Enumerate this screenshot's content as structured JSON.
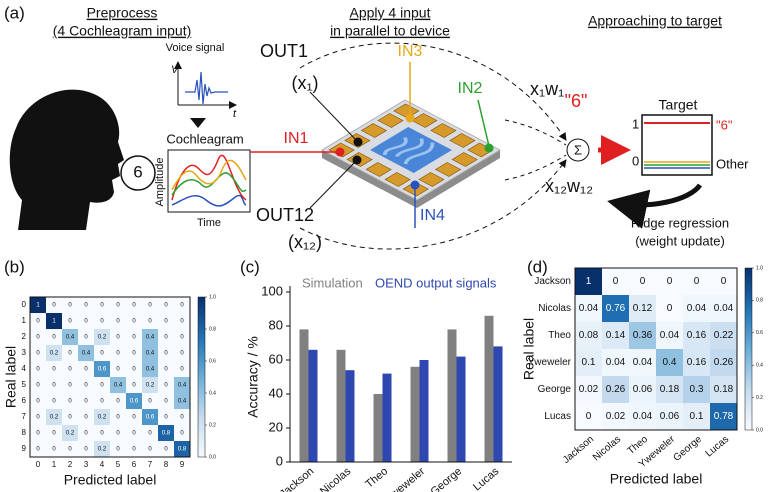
{
  "diagram": {
    "label": "(a)",
    "preprocess_title": "Preprocess",
    "preprocess_subtitle": "(4 Cochleagram input)",
    "apply_title": "Apply 4 input",
    "apply_subtitle": "in parallel to device",
    "target_title": "Approaching to target",
    "speech": "6",
    "voice_signal": "Voice signal",
    "voice_y": "V",
    "voice_x": "t",
    "cochleagram": "Cochleagram",
    "amplitude": "Amplitude",
    "time": "Time",
    "out1": "OUT1",
    "x1": "(x₁)",
    "out12": "OUT12",
    "x12": "(x₁₂)",
    "in1": "IN1",
    "in2": "IN2",
    "in3": "IN3",
    "in4": "IN4",
    "x1w1": "x₁w₁",
    "x12w12": "x₁₂w₁₂",
    "sum_label": "\"6\"",
    "sigma": "Σ",
    "target": "Target",
    "one": "1",
    "zero": "0",
    "target_six": "\"6\"",
    "other": "Other",
    "ridge": "Ridge regression",
    "weight_update": "(weight update)"
  },
  "chart_data": [
    {
      "type": "heatmap",
      "label": "(b)",
      "x_label": "Predicted label",
      "y_label": "Real label",
      "x": [
        "0",
        "1",
        "2",
        "3",
        "4",
        "5",
        "6",
        "7",
        "8",
        "9"
      ],
      "y": [
        "0",
        "1",
        "2",
        "3",
        "4",
        "5",
        "6",
        "7",
        "8",
        "9"
      ],
      "values": [
        [
          1,
          0,
          0,
          0,
          0,
          0,
          0,
          0,
          0,
          0
        ],
        [
          0,
          1,
          0,
          0,
          0,
          0,
          0,
          0,
          0,
          0
        ],
        [
          0,
          0,
          0.4,
          0,
          0.2,
          0,
          0,
          0.4,
          0,
          0
        ],
        [
          0,
          0.2,
          0,
          0.4,
          0,
          0,
          0,
          0.4,
          0,
          0
        ],
        [
          0,
          0,
          0,
          0,
          0.6,
          0,
          0,
          0.4,
          0,
          0
        ],
        [
          0,
          0,
          0,
          0,
          0,
          0.4,
          0,
          0.2,
          0,
          0.4
        ],
        [
          0,
          0,
          0,
          0,
          0,
          0,
          0.6,
          0,
          0,
          0.4
        ],
        [
          0,
          0.2,
          0,
          0,
          0.2,
          0,
          0,
          0.6,
          0,
          0
        ],
        [
          0,
          0,
          0.2,
          0,
          0,
          0,
          0,
          0,
          0.8,
          0
        ],
        [
          0,
          0,
          0,
          0,
          0.2,
          0,
          0,
          0,
          0,
          0.8
        ]
      ],
      "clim": [
        0,
        1
      ],
      "cticks": [
        {
          "value": 0,
          "label": "0.0"
        },
        0.2,
        0.4,
        0.6,
        0.8,
        {
          "value": 1,
          "label": "1.0"
        }
      ],
      "colormap": [
        "#f7fbff",
        "#c6dbef",
        "#6baed6",
        "#2171b5",
        "#08306b"
      ]
    },
    {
      "type": "bar",
      "label": "(c)",
      "y_label": "Accuracy / %",
      "categories": [
        "Jackson",
        "Nicolas",
        "Theo",
        "Yweweler",
        "George",
        "Lucas"
      ],
      "series": [
        {
          "name": "Simulation",
          "color": "#808080",
          "values": [
            78,
            66,
            40,
            56,
            78,
            86
          ]
        },
        {
          "name": "OEND output signals",
          "color": "#2f47b0",
          "values": [
            66,
            54,
            52,
            60,
            62,
            68
          ]
        }
      ],
      "ylim": [
        0,
        100
      ],
      "yticks": [
        0,
        20,
        40,
        60,
        80,
        100
      ],
      "legend": "top"
    },
    {
      "type": "heatmap",
      "label": "(d)",
      "x_label": "Predicted label",
      "y_label": "Real label",
      "x": [
        "Jackson",
        "Nicolas",
        "Theo",
        "Yweweler",
        "George",
        "Lucas"
      ],
      "y": [
        "Jackson",
        "Nicolas",
        "Theo",
        "Yweweler",
        "George",
        "Lucas"
      ],
      "values": [
        [
          1,
          0,
          0,
          0,
          0,
          0
        ],
        [
          0.04,
          0.76,
          0.12,
          0,
          0.04,
          0.04
        ],
        [
          0.08,
          0.14,
          0.36,
          0.04,
          0.16,
          0.22
        ],
        [
          0.1,
          0.04,
          0.04,
          0.4,
          0.16,
          0.26
        ],
        [
          0.02,
          0.26,
          0.06,
          0.18,
          0.3,
          0.18
        ],
        [
          0,
          0.02,
          0.04,
          0.06,
          0.1,
          0.78
        ]
      ],
      "clim": [
        0,
        1
      ],
      "cticks": [
        {
          "value": 0,
          "label": "0.0"
        },
        0.2,
        0.4,
        0.6,
        0.8,
        {
          "value": 1,
          "label": "1.0"
        }
      ],
      "colormap": [
        "#f7fbff",
        "#c6dbef",
        "#6baed6",
        "#2171b5",
        "#08306b"
      ]
    }
  ]
}
